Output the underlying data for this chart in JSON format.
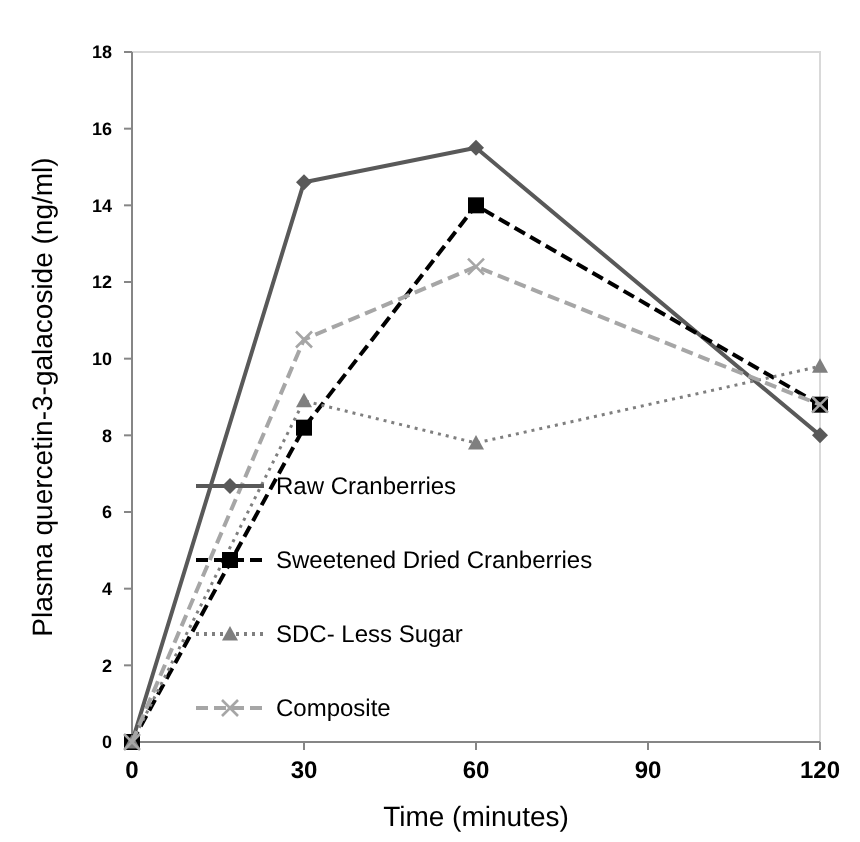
{
  "chart_data": {
    "type": "line",
    "xlabel": "Time (minutes)",
    "ylabel": "Plasma quercetin-3-galacoside (ng/ml)",
    "x": [
      0,
      30,
      60,
      120
    ],
    "xlim": [
      0,
      120
    ],
    "xticks": [
      0,
      30,
      60,
      90,
      120
    ],
    "ylim": [
      0,
      18
    ],
    "yticks": [
      0,
      2,
      4,
      6,
      8,
      10,
      12,
      14,
      16,
      18
    ],
    "legend": "left",
    "grid": false,
    "series": [
      {
        "name": "Raw Cranberries",
        "color": "#595959",
        "values": [
          0,
          14.6,
          15.5,
          8.0
        ],
        "marker": "diamond",
        "line_style": "solid"
      },
      {
        "name": "Sweetened Dried Cranberries",
        "color": "#000000",
        "values": [
          0,
          8.2,
          14.0,
          8.8
        ],
        "marker": "square",
        "line_style": "dashed"
      },
      {
        "name": "SDC- Less Sugar",
        "color": "#7f7f7f",
        "values": [
          0,
          8.9,
          7.8,
          9.8
        ],
        "marker": "triangle",
        "line_style": "dotted"
      },
      {
        "name": "Composite",
        "color": "#a6a6a6",
        "values": [
          0,
          10.5,
          12.4,
          8.8
        ],
        "marker": "cross",
        "line_style": "dashed"
      }
    ]
  }
}
